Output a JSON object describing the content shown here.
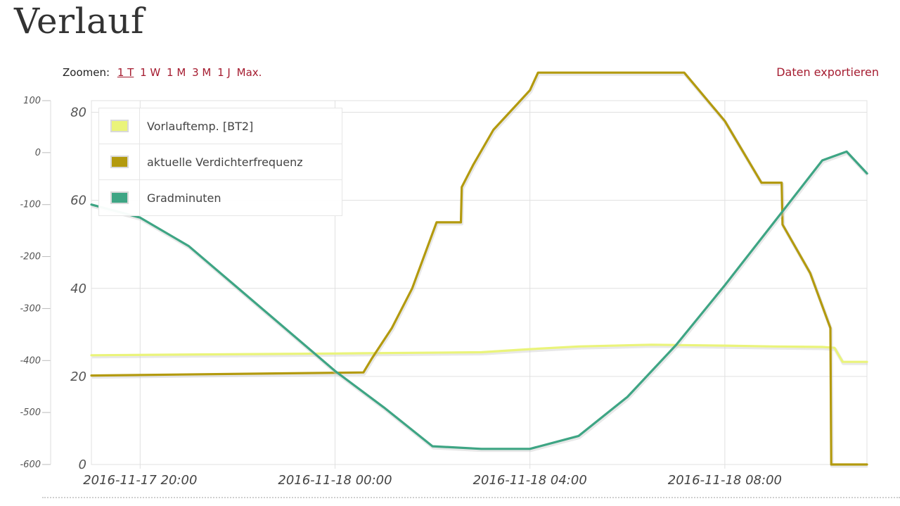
{
  "page": {
    "title": "Verlauf"
  },
  "toolbar": {
    "zoom_label": "Zoomen:",
    "zoom_options": [
      "1 T",
      "1 W",
      "1 M",
      "3 M",
      "1 J",
      "Max."
    ],
    "active_zoom": "1 T",
    "export_label": "Daten exportieren"
  },
  "colors": {
    "vorlauf": "#eaf47a",
    "verdichter": "#b39a0e",
    "gradminuten": "#3ea584",
    "link": "#a51c30",
    "grid": "#e0e0e0"
  },
  "chart_data": {
    "type": "line",
    "title": "",
    "xlabel": "",
    "ylabel": "",
    "x_ticks": [
      "2016-11-17 20:00",
      "2016-11-18 00:00",
      "2016-11-18 04:00",
      "2016-11-18 08:00"
    ],
    "x_range": [
      "2016-11-17 19:00",
      "2016-11-18 10:55"
    ],
    "axes": {
      "left_inner": {
        "ticks": [
          "0",
          "20",
          "40",
          "60",
          "80"
        ],
        "range": [
          0,
          80
        ]
      },
      "left_outer": {
        "ticks": [
          "100",
          "0",
          "-100",
          "-200",
          "-300",
          "-400",
          "-500",
          "-600"
        ],
        "range": [
          -600,
          100
        ]
      }
    },
    "grid": true,
    "legend": "top-left",
    "series": [
      {
        "name": "Vorlauftemp. [BT2]",
        "axis": "left_inner",
        "x": [
          "2016-11-17 19:00",
          "2016-11-18 00:00",
          "2016-11-18 03:00",
          "2016-11-18 04:00",
          "2016-11-18 05:00",
          "2016-11-18 06:30",
          "2016-11-18 08:00",
          "2016-11-18 09:00",
          "2016-11-18 10:00",
          "2016-11-18 10:15",
          "2016-11-18 10:25",
          "2016-11-18 10:55"
        ],
        "values": [
          24.8,
          25.2,
          25.5,
          26.2,
          26.8,
          27.2,
          27.0,
          26.8,
          26.7,
          26.5,
          23.3,
          23.3
        ]
      },
      {
        "name": "aktuelle Verdichterfrequenz",
        "axis": "left_inner",
        "x": [
          "2016-11-17 19:00",
          "2016-11-18 00:35",
          "2016-11-18 00:45",
          "2016-11-18 01:10",
          "2016-11-18 01:35",
          "2016-11-18 02:05",
          "2016-11-18 02:35",
          "2016-11-18 02:36",
          "2016-11-18 02:50",
          "2016-11-18 03:15",
          "2016-11-18 03:45",
          "2016-11-18 04:00",
          "2016-11-18 04:10",
          "2016-11-18 07:10",
          "2016-11-18 08:00",
          "2016-11-18 08:45",
          "2016-11-18 09:10",
          "2016-11-18 09:11",
          "2016-11-18 09:45",
          "2016-11-18 10:10",
          "2016-11-18 10:11",
          "2016-11-18 10:55"
        ],
        "values": [
          20.2,
          20.9,
          24,
          31,
          40,
          55,
          55,
          63,
          68,
          76,
          82,
          85,
          89,
          89,
          78,
          64,
          64,
          54.5,
          43.5,
          31,
          0,
          0
        ]
      },
      {
        "name": "Gradminuten",
        "axis": "left_outer",
        "x": [
          "2016-11-17 19:00",
          "2016-11-17 20:00",
          "2016-11-17 21:00",
          "2016-11-17 22:00",
          "2016-11-17 23:00",
          "2016-11-18 00:00",
          "2016-11-18 01:00",
          "2016-11-18 02:00",
          "2016-11-18 03:00",
          "2016-11-18 04:00",
          "2016-11-18 05:00",
          "2016-11-18 06:00",
          "2016-11-18 07:00",
          "2016-11-18 08:00",
          "2016-11-18 09:00",
          "2016-11-18 10:00",
          "2016-11-18 10:30",
          "2016-11-18 10:55"
        ],
        "values": [
          -100,
          -125,
          -180,
          -260,
          -340,
          -420,
          -490,
          -565,
          -570,
          -570,
          -545,
          -470,
          -370,
          -255,
          -135,
          -15,
          2,
          -40
        ]
      }
    ]
  }
}
